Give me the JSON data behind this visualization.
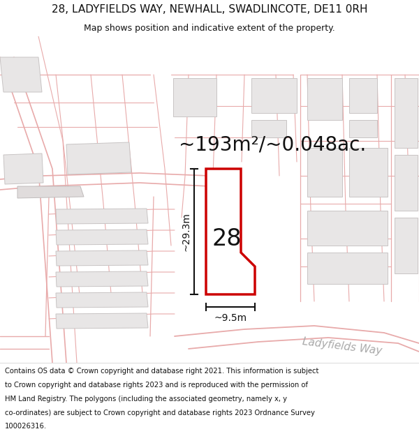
{
  "title_line1": "28, LADYFIELDS WAY, NEWHALL, SWADLINCOTE, DE11 0RH",
  "title_line2": "Map shows position and indicative extent of the property.",
  "area_label": "~193m²/~0.048ac.",
  "house_number": "28",
  "dim_vertical": "~29.3m",
  "dim_horizontal": "~9.5m",
  "street_label": "Ladyfields Way",
  "bg_color": "#ffffff",
  "map_bg": "#ffffff",
  "plot_fill": "#ffffff",
  "plot_edge": "#cc0000",
  "building_fill": "#e8e6e6",
  "building_edge": "#c8c4c4",
  "road_line": "#e8aaaa",
  "dim_color": "#111111",
  "text_color": "#111111",
  "street_color": "#aaaaaa",
  "title_fontsize": 11,
  "subtitle_fontsize": 9,
  "area_fontsize": 20,
  "house_fontsize": 24,
  "dim_fontsize": 10,
  "street_fontsize": 11,
  "footer_fontsize": 7.2,
  "footer_lines": [
    "Contains OS data © Crown copyright and database right 2021. This information is subject",
    "to Crown copyright and database rights 2023 and is reproduced with the permission of",
    "HM Land Registry. The polygons (including the associated geometry, namely x, y",
    "co-ordinates) are subject to Crown copyright and database rights 2023 Ordnance Survey",
    "100026316."
  ]
}
